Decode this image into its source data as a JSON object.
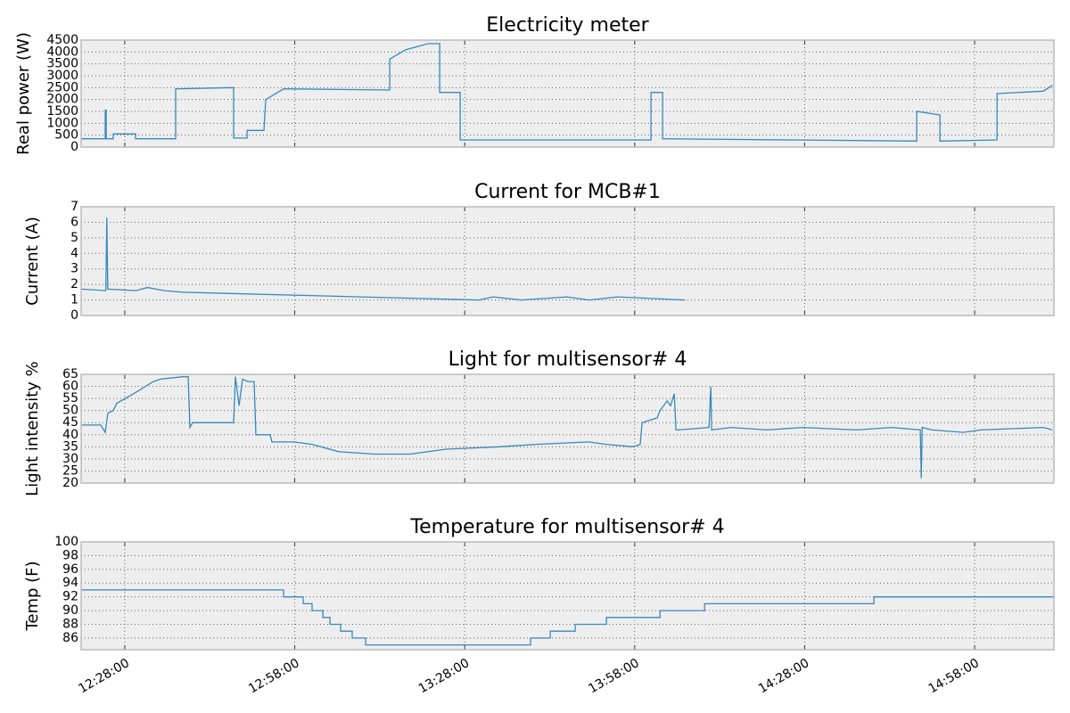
{
  "chart_data": [
    {
      "type": "line",
      "title": "Electricity meter",
      "ylabel": "Real power (W)",
      "x": [
        "12:20:18",
        "12:24:33",
        "12:24:33",
        "12:24:43",
        "12:24:43",
        "12:25:58",
        "12:25:58",
        "12:29:54",
        "12:29:54",
        "12:36:59",
        "12:36:59",
        "12:47:13",
        "12:47:13",
        "12:49:35",
        "12:49:35",
        "12:52:34",
        "12:52:53",
        "12:56:02",
        "13:14:46",
        "13:14:46",
        "13:17:36",
        "13:21:32",
        "13:23:35",
        "13:23:35",
        "13:27:12",
        "13:27:12",
        "14:00:53",
        "14:00:53",
        "14:02:56",
        "14:02:56",
        "14:47:47",
        "14:47:47",
        "14:51:53",
        "14:51:53",
        "15:01:58",
        "15:01:58",
        "15:10:08",
        "15:11:43"
      ],
      "series": [
        {
          "color": "#348abd",
          "values": [
            350,
            350,
            1550,
            1550,
            350,
            350,
            550,
            550,
            350,
            350,
            2450,
            2500,
            380,
            380,
            700,
            700,
            2000,
            2450,
            2400,
            3700,
            4100,
            4350,
            4350,
            2300,
            2300,
            300,
            300,
            2300,
            2300,
            350,
            250,
            1500,
            1350,
            250,
            300,
            2250,
            2350,
            2600
          ]
        }
      ],
      "xlim": [
        "12:20:18",
        "15:12:00"
      ],
      "xticks": [
        "12:28:00",
        "12:58:00",
        "13:28:00",
        "13:58:00",
        "14:28:00",
        "14:58:00"
      ],
      "ylim": [
        0,
        4500
      ],
      "yticks": [
        0,
        500,
        1000,
        1500,
        2000,
        2500,
        3000,
        3500,
        4000,
        4500
      ],
      "grid": true
    },
    {
      "type": "line",
      "title": "Current for MCB#1",
      "ylabel": "Current (A)",
      "x": [
        "12:20:18",
        "12:24:40",
        "12:24:50",
        "12:25:00",
        "12:30:00",
        "12:32:00",
        "12:35:00",
        "12:38:14",
        "13:30:30",
        "13:33:00",
        "13:38:00",
        "13:46:00",
        "13:50:00",
        "13:55:00",
        "14:06:54"
      ],
      "series": [
        {
          "color": "#348abd",
          "values": [
            1.7,
            1.6,
            6.3,
            1.7,
            1.6,
            1.8,
            1.6,
            1.5,
            1.0,
            1.2,
            1.0,
            1.2,
            1.0,
            1.2,
            1.0
          ]
        }
      ],
      "xlim": [
        "12:20:18",
        "15:12:00"
      ],
      "xticks": [
        "12:28:00",
        "12:58:00",
        "13:28:00",
        "13:58:00",
        "14:28:00",
        "14:58:00"
      ],
      "ylim": [
        0,
        7
      ],
      "yticks": [
        0,
        1,
        2,
        3,
        4,
        5,
        6,
        7
      ],
      "grid": true
    },
    {
      "type": "line",
      "title": "Light for multisensor# 4",
      "ylabel": "Light intensity %",
      "x": [
        "12:20:18",
        "12:23:46",
        "12:24:33",
        "12:25:01",
        "12:25:58",
        "12:26:36",
        "12:29:35",
        "12:33:03",
        "12:34:18",
        "12:38:14",
        "12:39:11",
        "12:39:30",
        "12:39:59",
        "12:47:13",
        "12:47:32",
        "12:48:10",
        "12:48:47",
        "12:49:44",
        "12:50:50",
        "12:51:09",
        "12:53:40",
        "12:53:59",
        "12:57:55",
        "13:01:04",
        "13:05:47",
        "13:12:05",
        "13:18:23",
        "13:24:41",
        "13:34:07",
        "13:40:25",
        "13:49:52",
        "13:53:01",
        "13:57:44",
        "13:58:59",
        "13:59:18",
        "14:01:59",
        "14:02:28",
        "14:03:43",
        "14:04:21",
        "14:04:59",
        "14:05:17",
        "14:05:36",
        "14:11:07",
        "14:11:26",
        "14:11:35",
        "14:15:03",
        "14:21:21",
        "14:27:38",
        "14:37:05",
        "14:43:23",
        "14:48:25",
        "14:48:35",
        "14:48:44",
        "14:50:28",
        "14:55:58",
        "14:59:07",
        "15:10:08",
        "15:11:43"
      ],
      "series": [
        {
          "color": "#348abd",
          "values": [
            44,
            44,
            41,
            49,
            50,
            53,
            57,
            62,
            63,
            64,
            64,
            43,
            45,
            45,
            64,
            52,
            63,
            62,
            62,
            40,
            40,
            37,
            37,
            36,
            33,
            32,
            32,
            34,
            35,
            36,
            37,
            36,
            35,
            36,
            45,
            47,
            50,
            54,
            52,
            57,
            42,
            42,
            43,
            60,
            42,
            43,
            42,
            43,
            42,
            43,
            42,
            22,
            43,
            42,
            41,
            42,
            43,
            42
          ]
        }
      ],
      "xlim": [
        "12:20:18",
        "15:12:00"
      ],
      "xticks": [
        "12:28:00",
        "12:58:00",
        "13:28:00",
        "13:58:00",
        "14:28:00",
        "14:58:00"
      ],
      "ylim": [
        20,
        65
      ],
      "yticks": [
        20,
        25,
        30,
        35,
        40,
        45,
        50,
        55,
        60,
        65
      ],
      "grid": true
    },
    {
      "type": "line",
      "title": "Temperature for multisensor# 4",
      "ylabel": "Temp (F)",
      "x": [
        "12:20:18",
        "12:56:02",
        "12:56:02",
        "12:59:29",
        "12:59:29",
        "13:01:04",
        "13:01:04",
        "13:02:58",
        "13:02:58",
        "13:04:13",
        "13:04:13",
        "13:06:06",
        "13:06:06",
        "13:08:09",
        "13:08:09",
        "13:10:31",
        "13:10:31",
        "13:39:38",
        "13:39:38",
        "13:43:06",
        "13:43:06",
        "13:47:30",
        "13:47:30",
        "13:53:01",
        "13:53:01",
        "14:02:28",
        "14:02:28",
        "14:10:20",
        "14:10:20",
        "14:40:14",
        "14:40:14",
        "15:12:00"
      ],
      "series": [
        {
          "color": "#348abd",
          "values": [
            93,
            93,
            92,
            92,
            91,
            91,
            90,
            90,
            89,
            89,
            88,
            88,
            87,
            87,
            86,
            86,
            85,
            85,
            86,
            86,
            87,
            87,
            88,
            88,
            89,
            89,
            90,
            90,
            91,
            91,
            92,
            92
          ]
        }
      ],
      "xlim": [
        "12:20:18",
        "15:12:00"
      ],
      "xticks": [
        "12:28:00",
        "12:58:00",
        "13:28:00",
        "13:58:00",
        "14:28:00",
        "14:58:00"
      ],
      "ylim": [
        84.3,
        100
      ],
      "yticks": [
        86,
        88,
        90,
        92,
        94,
        96,
        98,
        100
      ],
      "grid": true
    }
  ]
}
